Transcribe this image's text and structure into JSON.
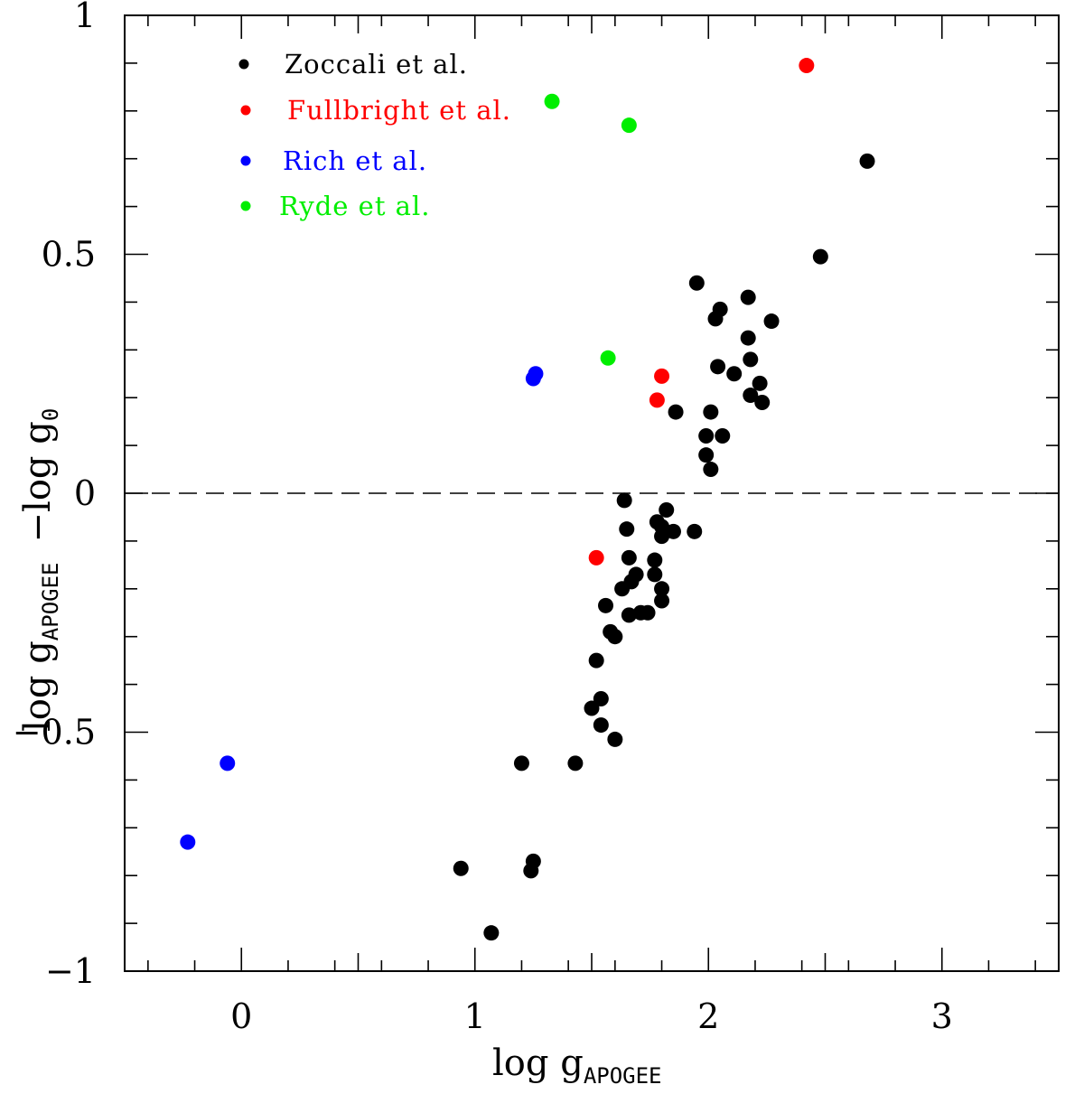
{
  "chart_data": {
    "type": "scatter",
    "title": "",
    "xlabel": "log g",
    "xlabel_sub": "APOGEE",
    "ylabel_parts": [
      "log g",
      "APOGEE",
      "−log g",
      "0"
    ],
    "xlim": [
      -0.5,
      3.5
    ],
    "ylim": [
      -1,
      1
    ],
    "x_ticks": [
      0,
      1,
      2,
      3
    ],
    "x_tick_labels": [
      "0",
      "1",
      "2",
      "3"
    ],
    "y_ticks": [
      -1,
      -0.5,
      0,
      0.5,
      1
    ],
    "y_tick_labels": [
      "−1",
      "−0.5",
      "0",
      "0.5",
      "1"
    ],
    "reference_line": {
      "y": 0,
      "style": "dashed"
    },
    "legend_position": "top-left",
    "series": [
      {
        "name": "Zoccali et al.",
        "color": "#000000",
        "points": [
          [
            2.68,
            0.695
          ],
          [
            2.48,
            0.495
          ],
          [
            1.95,
            0.44
          ],
          [
            2.17,
            0.41
          ],
          [
            2.05,
            0.385
          ],
          [
            2.03,
            0.365
          ],
          [
            2.27,
            0.36
          ],
          [
            2.17,
            0.325
          ],
          [
            2.18,
            0.28
          ],
          [
            2.04,
            0.265
          ],
          [
            2.11,
            0.25
          ],
          [
            2.22,
            0.23
          ],
          [
            2.18,
            0.205
          ],
          [
            2.23,
            0.19
          ],
          [
            1.86,
            0.17
          ],
          [
            2.01,
            0.17
          ],
          [
            1.99,
            0.12
          ],
          [
            2.06,
            0.12
          ],
          [
            1.99,
            0.08
          ],
          [
            2.01,
            0.05
          ],
          [
            1.64,
            -0.015
          ],
          [
            1.82,
            -0.035
          ],
          [
            1.65,
            -0.075
          ],
          [
            1.78,
            -0.06
          ],
          [
            1.8,
            -0.07
          ],
          [
            1.85,
            -0.08
          ],
          [
            1.94,
            -0.08
          ],
          [
            1.8,
            -0.09
          ],
          [
            1.66,
            -0.135
          ],
          [
            1.77,
            -0.14
          ],
          [
            1.69,
            -0.17
          ],
          [
            1.67,
            -0.185
          ],
          [
            1.77,
            -0.17
          ],
          [
            1.63,
            -0.2
          ],
          [
            1.8,
            -0.2
          ],
          [
            1.8,
            -0.225
          ],
          [
            1.56,
            -0.235
          ],
          [
            1.66,
            -0.255
          ],
          [
            1.71,
            -0.25
          ],
          [
            1.74,
            -0.25
          ],
          [
            1.58,
            -0.29
          ],
          [
            1.6,
            -0.3
          ],
          [
            1.52,
            -0.35
          ],
          [
            1.54,
            -0.43
          ],
          [
            1.5,
            -0.45
          ],
          [
            1.54,
            -0.485
          ],
          [
            1.6,
            -0.515
          ],
          [
            1.2,
            -0.565
          ],
          [
            1.43,
            -0.565
          ],
          [
            0.94,
            -0.785
          ],
          [
            1.25,
            -0.77
          ],
          [
            1.24,
            -0.79
          ],
          [
            1.07,
            -0.92
          ]
        ]
      },
      {
        "name": "Fullbright et al.",
        "color": "#ff0000",
        "points": [
          [
            2.42,
            0.895
          ],
          [
            1.8,
            0.245
          ],
          [
            1.78,
            0.195
          ],
          [
            1.52,
            -0.135
          ]
        ]
      },
      {
        "name": "Rich et al.",
        "color": "#0000ff",
        "points": [
          [
            1.26,
            0.25
          ],
          [
            1.25,
            0.24
          ],
          [
            -0.06,
            -0.565
          ],
          [
            -0.23,
            -0.73
          ]
        ]
      },
      {
        "name": "Ryde et al.",
        "color": "#00ee00",
        "points": [
          [
            1.33,
            0.82
          ],
          [
            1.66,
            0.77
          ],
          [
            1.57,
            0.283
          ]
        ]
      }
    ]
  }
}
